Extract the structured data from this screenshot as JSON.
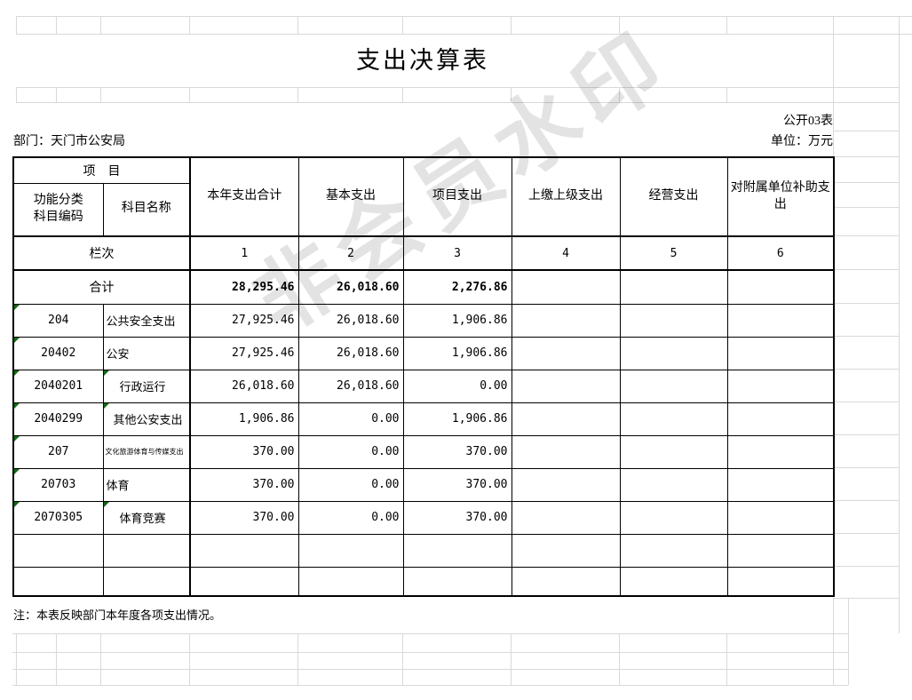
{
  "watermark_text": "非会员水印",
  "header": {
    "title": "支出决算表",
    "form_code": "公开03表",
    "department": "部门：天门市公安局",
    "unit": "单位：万元"
  },
  "table": {
    "item_header": "项　目",
    "code_header_line1": "功能分类",
    "code_header_line2": "科目编码",
    "name_header": "科目名称",
    "columns": [
      "本年支出合计",
      "基本支出",
      "项目支出",
      "上缴上级支出",
      "经营支出",
      "对附属单位补助支出"
    ],
    "rank_label": "栏次",
    "ranks": [
      "1",
      "2",
      "3",
      "4",
      "5",
      "6"
    ],
    "total": {
      "label": "合计",
      "values": [
        "28,295.46",
        "26,018.60",
        "2,276.86",
        "",
        "",
        ""
      ]
    },
    "rows": [
      {
        "code": "204",
        "name": "公共安全支出",
        "values": [
          "27,925.46",
          "26,018.60",
          "1,906.86",
          "",
          "",
          ""
        ]
      },
      {
        "code": "20402",
        "name": "公安",
        "values": [
          "27,925.46",
          "26,018.60",
          "1,906.86",
          "",
          "",
          ""
        ]
      },
      {
        "code": "2040201",
        "name": "行政运行",
        "values": [
          "26,018.60",
          "26,018.60",
          "0.00",
          "",
          "",
          ""
        ]
      },
      {
        "code": "2040299",
        "name": "其他公安支出",
        "values": [
          "1,906.86",
          "0.00",
          "1,906.86",
          "",
          "",
          ""
        ]
      },
      {
        "code": "207",
        "name": "文化旅游体育与传媒支出",
        "values": [
          "370.00",
          "0.00",
          "370.00",
          "",
          "",
          ""
        ]
      },
      {
        "code": "20703",
        "name": "体育",
        "values": [
          "370.00",
          "0.00",
          "370.00",
          "",
          "",
          ""
        ]
      },
      {
        "code": "2070305",
        "name": "体育竞赛",
        "values": [
          "370.00",
          "0.00",
          "370.00",
          "",
          "",
          ""
        ]
      },
      {
        "code": "",
        "name": "",
        "values": [
          "",
          "",
          "",
          "",
          "",
          ""
        ]
      },
      {
        "code": "",
        "name": "",
        "values": [
          "",
          "",
          "",
          "",
          "",
          ""
        ]
      }
    ],
    "note": "注：本表反映部门本年度各项支出情况。"
  },
  "colors": {
    "gridline": "#d9d9d9",
    "border": "#000000",
    "flag_triangle_green": "#0b6e0b",
    "watermark_gray": "rgba(0,0,0,0.11)"
  }
}
